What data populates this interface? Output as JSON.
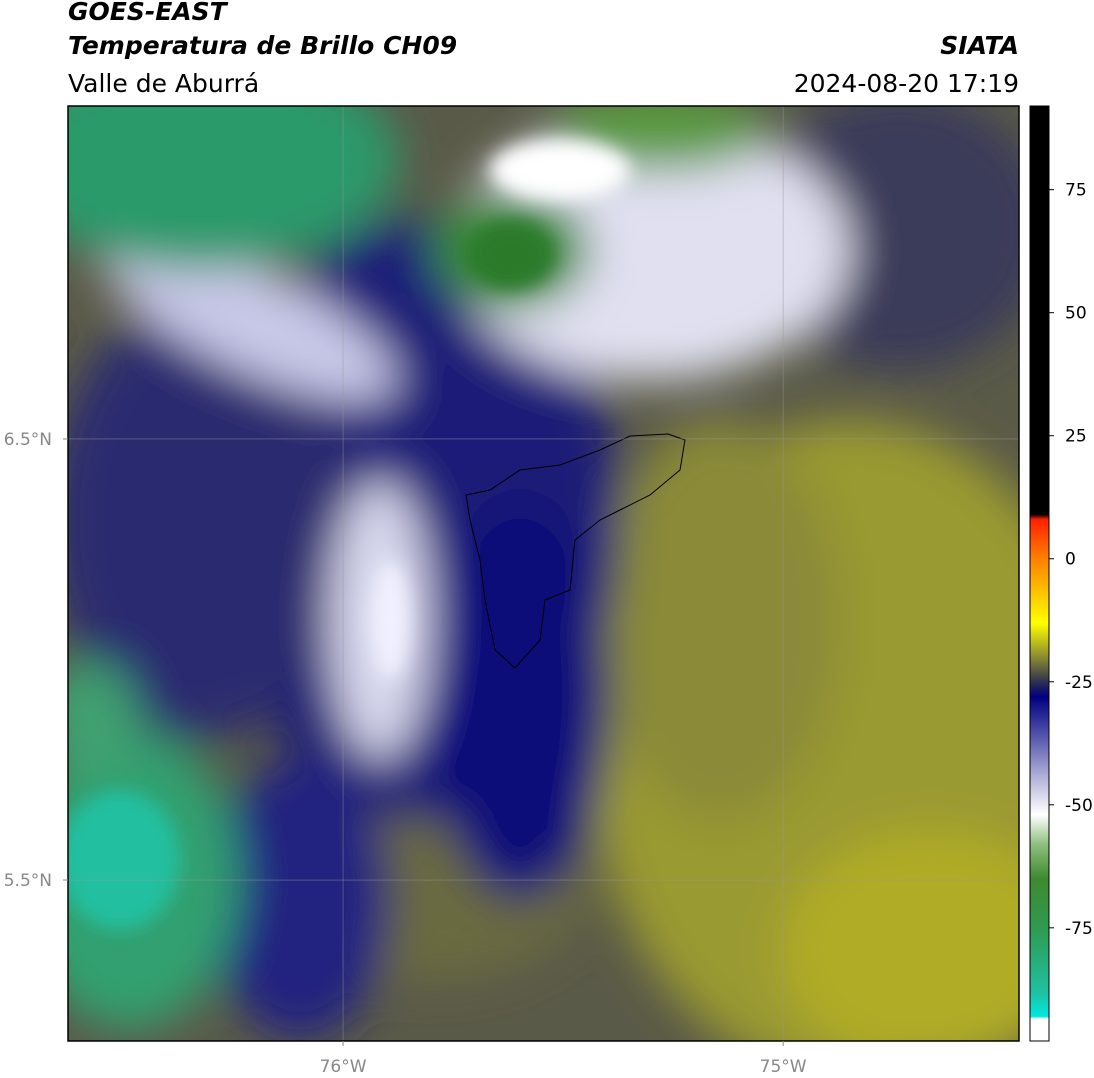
{
  "header": {
    "title": "GOES-EAST",
    "subtitle": "Temperatura de Brillo CH09",
    "source": "SIATA",
    "region": "Valle de Aburrá",
    "timestamp": "2024-08-20 17:19"
  },
  "map": {
    "xlim": [
      -76.625,
      -74.464
    ],
    "ylim": [
      5.135,
      7.255
    ],
    "xticks": [
      {
        "value": -76,
        "label": "76°W"
      },
      {
        "value": -75,
        "label": "75°W"
      }
    ],
    "yticks": [
      {
        "value": 6.5,
        "label": "6.5°N"
      },
      {
        "value": 5.5,
        "label": "5.5°N"
      }
    ],
    "grid": true
  },
  "colorbar": {
    "lim": [
      -98,
      92
    ],
    "ticks": [
      75,
      50,
      25,
      0,
      -25,
      -50,
      -75
    ],
    "stops": [
      {
        "value": 92,
        "color": "#000000"
      },
      {
        "value": 9,
        "color": "#000000"
      },
      {
        "value": 8,
        "color": "#ff2000"
      },
      {
        "value": 0,
        "color": "#ff8000"
      },
      {
        "value": -13,
        "color": "#ffff00"
      },
      {
        "value": -20,
        "color": "#8a8a30"
      },
      {
        "value": -25,
        "color": "#303050"
      },
      {
        "value": -28,
        "color": "#000080"
      },
      {
        "value": -35,
        "color": "#4a4aa8"
      },
      {
        "value": -45,
        "color": "#b8b8dc"
      },
      {
        "value": -52,
        "color": "#ffffff"
      },
      {
        "value": -58,
        "color": "#8fbf80"
      },
      {
        "value": -65,
        "color": "#3e8a30"
      },
      {
        "value": -75,
        "color": "#2f9a50"
      },
      {
        "value": -88,
        "color": "#20c0a0"
      },
      {
        "value": -93,
        "color": "#00e8e0"
      },
      {
        "value": -93.5,
        "color": "#ffffff"
      },
      {
        "value": -98,
        "color": "#ffffff"
      }
    ]
  }
}
